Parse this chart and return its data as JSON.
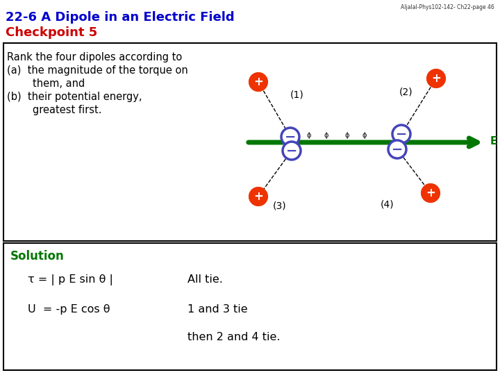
{
  "title_line1": "22-6 A Dipole in an Electric Field",
  "title_line2": "Checkpoint 5",
  "title_color1": "#0000CC",
  "title_color2": "#CC0000",
  "watermark": "Aljalal-Phys102-142- Ch22-page 46",
  "box1_text_lines": [
    "Rank the four dipoles according to",
    "(a)  the magnitude of the torque on",
    "        them, and",
    "(b)  their potential energy,",
    "        greatest first."
  ],
  "solution_label": "Solution",
  "tau_line": "τ = | p E sin θ |",
  "tau_answer": "All tie.",
  "U_line": "U  = -p E cos θ",
  "U_answer": "1 and 3 tie",
  "U_answer2": "then 2 and 4 tie.",
  "plus_color": "#EE3300",
  "minus_color": "#4444BB",
  "arrow_color": "#007700",
  "E_label": "E",
  "background": "#FFFFFF",
  "box_border": "#000000",
  "fig_width": 7.2,
  "fig_height": 5.4,
  "dpi": 100
}
